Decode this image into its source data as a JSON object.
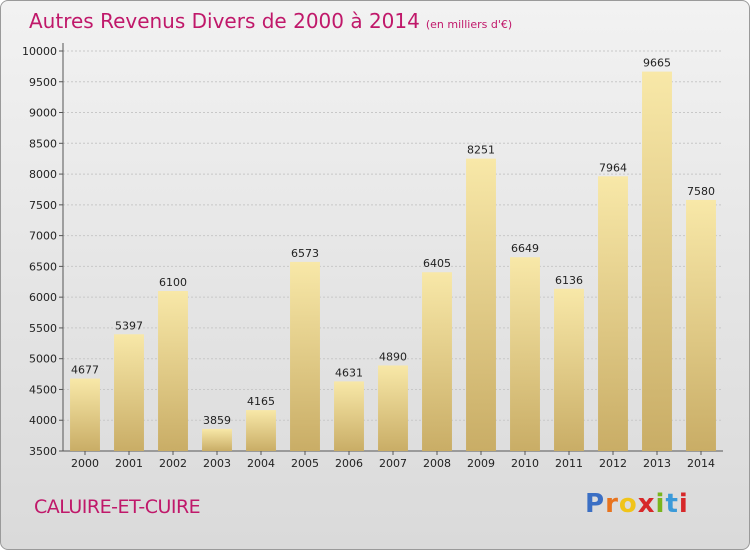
{
  "header": {
    "title": "Autres Revenus Divers de 2000 à 2014",
    "subtitle": "(en milliers d'€)"
  },
  "footer": {
    "commune": "CALUIRE-ET-CUIRE",
    "logo_letters": [
      "P",
      "r",
      "o",
      "x",
      "i",
      "t",
      "i"
    ],
    "logo_colors": [
      "#3b6fc4",
      "#e8731d",
      "#f0c419",
      "#d7282a",
      "#7ab51d",
      "#3b9ad9",
      "#d7282a"
    ]
  },
  "colors": {
    "accent": "#c0186a",
    "bar_light": "#f8e8a8",
    "bar_dark": "#c9ad66"
  },
  "chart_data": {
    "type": "bar",
    "title": "Autres Revenus Divers de 2000 à 2014",
    "subtitle": "(en milliers d'€)",
    "categories": [
      "2000",
      "2001",
      "2002",
      "2003",
      "2004",
      "2005",
      "2006",
      "2007",
      "2008",
      "2009",
      "2010",
      "2011",
      "2012",
      "2013",
      "2014"
    ],
    "values": [
      4677,
      5397,
      6100,
      3859,
      4165,
      6573,
      4631,
      4890,
      6405,
      8251,
      6649,
      6136,
      7964,
      9665,
      7580
    ],
    "ylim": [
      3500,
      10000
    ],
    "yticks": [
      3500,
      4000,
      4500,
      5000,
      5500,
      6000,
      6500,
      7000,
      7500,
      8000,
      8500,
      9000,
      9500,
      10000
    ],
    "grid": true
  }
}
